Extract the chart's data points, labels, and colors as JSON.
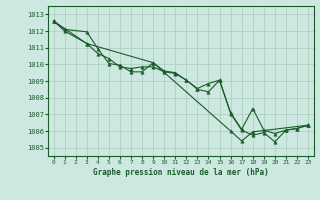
{
  "title": "Graphe pression niveau de la mer (hPa)",
  "xlim": [
    -0.5,
    23.5
  ],
  "ylim": [
    1004.5,
    1013.5
  ],
  "yticks": [
    1005,
    1006,
    1007,
    1008,
    1009,
    1010,
    1011,
    1012,
    1013
  ],
  "xticks": [
    0,
    1,
    2,
    3,
    4,
    5,
    6,
    7,
    8,
    9,
    10,
    11,
    12,
    13,
    14,
    15,
    16,
    17,
    18,
    19,
    20,
    21,
    22,
    23
  ],
  "bg_color": "#cce8e0",
  "grid_color": "#aaccbb",
  "line_color": "#1a5c2a",
  "line1_x": [
    0,
    1,
    3,
    4,
    5,
    6,
    7,
    8,
    9,
    10,
    11,
    12,
    13,
    14,
    15,
    16,
    17,
    18,
    19,
    20,
    21,
    22,
    23
  ],
  "line1_y": [
    1012.6,
    1012.0,
    1011.25,
    1010.65,
    1010.35,
    1009.85,
    1009.75,
    1009.85,
    1009.85,
    1009.55,
    1009.45,
    1009.05,
    1008.5,
    1008.35,
    1009.05,
    1007.05,
    1006.05,
    1005.75,
    1005.9,
    1005.35,
    1006.05,
    1006.15,
    1006.35
  ],
  "line2_x": [
    0,
    1,
    3,
    4,
    5,
    6,
    7,
    8,
    9,
    10,
    11,
    12,
    13,
    14,
    15,
    16,
    17,
    18,
    19,
    20,
    21,
    22,
    23
  ],
  "line2_y": [
    1012.6,
    1012.1,
    1011.95,
    1010.95,
    1010.05,
    1009.95,
    1009.55,
    1009.55,
    1010.1,
    1009.6,
    1009.5,
    1009.05,
    1008.55,
    1008.85,
    1009.05,
    1007.1,
    1006.1,
    1007.35,
    1006.05,
    1005.85,
    1006.05,
    1006.15,
    1006.35
  ],
  "line3_x": [
    0,
    3,
    9,
    16,
    17,
    18,
    23
  ],
  "line3_y": [
    1012.6,
    1011.25,
    1010.1,
    1006.0,
    1005.4,
    1005.95,
    1006.35
  ]
}
